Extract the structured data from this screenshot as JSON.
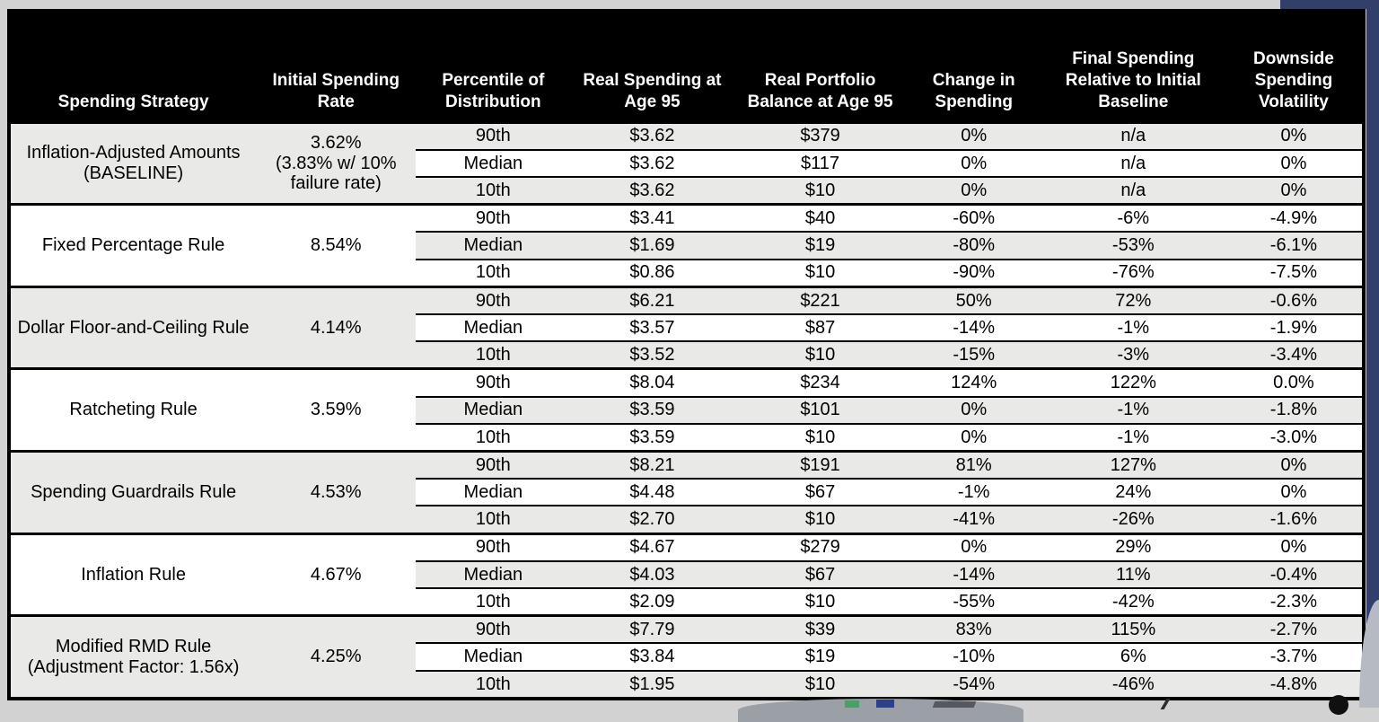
{
  "colors": {
    "page_bg": "#d2d2d2",
    "accent_navy": "#323f6b",
    "header_bg": "#000000",
    "header_fg": "#ffffff",
    "row_gray": "#e9e9e7",
    "line": "#000000"
  },
  "chart_data": {
    "type": "table",
    "columns": [
      "Spending Strategy",
      "Initial Spending Rate",
      "Percentile of Distribution",
      "Real Spending at Age 95",
      "Real Portfolio Balance at Age 95",
      "Change in Spending",
      "Final Spending Relative to Initial Baseline",
      "Downside Spending Volatility"
    ],
    "groups": [
      {
        "strategy": "Inflation-Adjusted Amounts (BASELINE)",
        "rate": "3.62%",
        "rate_note": "(3.83% w/ 10% failure rate)",
        "rows": [
          {
            "percentile": "90th",
            "spending": "$3.62",
            "balance": "$379",
            "change": "0%",
            "final": "n/a",
            "volatility": "0%"
          },
          {
            "percentile": "Median",
            "spending": "$3.62",
            "balance": "$117",
            "change": "0%",
            "final": "n/a",
            "volatility": "0%"
          },
          {
            "percentile": "10th",
            "spending": "$3.62",
            "balance": "$10",
            "change": "0%",
            "final": "n/a",
            "volatility": "0%"
          }
        ]
      },
      {
        "strategy": "Fixed Percentage Rule",
        "rate": "8.54%",
        "rows": [
          {
            "percentile": "90th",
            "spending": "$3.41",
            "balance": "$40",
            "change": "-60%",
            "final": "-6%",
            "volatility": "-4.9%"
          },
          {
            "percentile": "Median",
            "spending": "$1.69",
            "balance": "$19",
            "change": "-80%",
            "final": "-53%",
            "volatility": "-6.1%"
          },
          {
            "percentile": "10th",
            "spending": "$0.86",
            "balance": "$10",
            "change": "-90%",
            "final": "-76%",
            "volatility": "-7.5%"
          }
        ]
      },
      {
        "strategy": "Dollar Floor-and-Ceiling Rule",
        "rate": "4.14%",
        "rows": [
          {
            "percentile": "90th",
            "spending": "$6.21",
            "balance": "$221",
            "change": "50%",
            "final": "72%",
            "volatility": "-0.6%"
          },
          {
            "percentile": "Median",
            "spending": "$3.57",
            "balance": "$87",
            "change": "-14%",
            "final": "-1%",
            "volatility": "-1.9%"
          },
          {
            "percentile": "10th",
            "spending": "$3.52",
            "balance": "$10",
            "change": "-15%",
            "final": "-3%",
            "volatility": "-3.4%"
          }
        ]
      },
      {
        "strategy": "Ratcheting Rule",
        "rate": "3.59%",
        "rows": [
          {
            "percentile": "90th",
            "spending": "$8.04",
            "balance": "$234",
            "change": "124%",
            "final": "122%",
            "volatility": "0.0%"
          },
          {
            "percentile": "Median",
            "spending": "$3.59",
            "balance": "$101",
            "change": "0%",
            "final": "-1%",
            "volatility": "-1.8%"
          },
          {
            "percentile": "10th",
            "spending": "$3.59",
            "balance": "$10",
            "change": "0%",
            "final": "-1%",
            "volatility": "-3.0%"
          }
        ]
      },
      {
        "strategy": "Spending Guardrails Rule",
        "rate": "4.53%",
        "rows": [
          {
            "percentile": "90th",
            "spending": "$8.21",
            "balance": "$191",
            "change": "81%",
            "final": "127%",
            "volatility": "0%"
          },
          {
            "percentile": "Median",
            "spending": "$4.48",
            "balance": "$67",
            "change": "-1%",
            "final": "24%",
            "volatility": "0%"
          },
          {
            "percentile": "10th",
            "spending": "$2.70",
            "balance": "$10",
            "change": "-41%",
            "final": "-26%",
            "volatility": "-1.6%"
          }
        ]
      },
      {
        "strategy": "Inflation Rule",
        "rate": "4.67%",
        "rows": [
          {
            "percentile": "90th",
            "spending": "$4.67",
            "balance": "$279",
            "change": "0%",
            "final": "29%",
            "volatility": "0%"
          },
          {
            "percentile": "Median",
            "spending": "$4.03",
            "balance": "$67",
            "change": "-14%",
            "final": "11%",
            "volatility": "-0.4%"
          },
          {
            "percentile": "10th",
            "spending": "$2.09",
            "balance": "$10",
            "change": "-55%",
            "final": "-42%",
            "volatility": "-2.3%"
          }
        ]
      },
      {
        "strategy": "Modified RMD Rule (Adjustment Factor: 1.56x)",
        "rate": "4.25%",
        "rows": [
          {
            "percentile": "90th",
            "spending": "$7.79",
            "balance": "$39",
            "change": "83%",
            "final": "115%",
            "volatility": "-2.7%"
          },
          {
            "percentile": "Median",
            "spending": "$3.84",
            "balance": "$19",
            "change": "-10%",
            "final": "6%",
            "volatility": "-3.7%"
          },
          {
            "percentile": "10th",
            "spending": "$1.95",
            "balance": "$10",
            "change": "-54%",
            "final": "-46%",
            "volatility": "-4.8%"
          }
        ]
      }
    ]
  }
}
